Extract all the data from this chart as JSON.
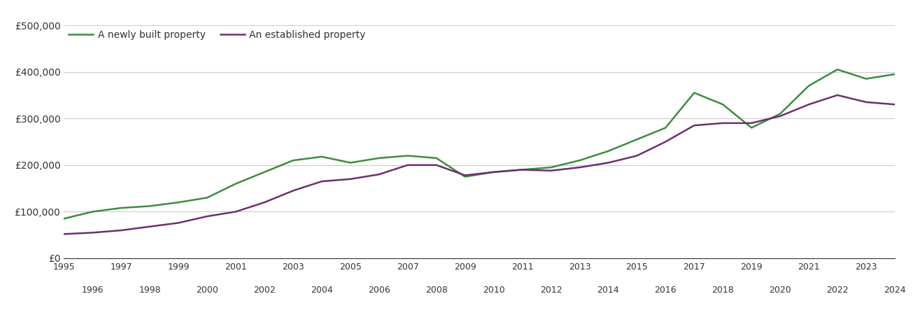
{
  "years": [
    1995,
    1996,
    1997,
    1998,
    1999,
    2000,
    2001,
    2002,
    2003,
    2004,
    2005,
    2006,
    2007,
    2008,
    2009,
    2010,
    2011,
    2012,
    2013,
    2014,
    2015,
    2016,
    2017,
    2018,
    2019,
    2020,
    2021,
    2022,
    2023,
    2024
  ],
  "new_property": [
    85000,
    100000,
    108000,
    112000,
    120000,
    130000,
    160000,
    185000,
    210000,
    218000,
    205000,
    215000,
    220000,
    215000,
    175000,
    185000,
    190000,
    195000,
    210000,
    230000,
    255000,
    280000,
    355000,
    330000,
    280000,
    310000,
    370000,
    405000,
    385000,
    395000
  ],
  "established_property": [
    52000,
    55000,
    60000,
    68000,
    76000,
    90000,
    100000,
    120000,
    145000,
    165000,
    170000,
    180000,
    200000,
    200000,
    178000,
    185000,
    190000,
    188000,
    195000,
    205000,
    220000,
    250000,
    285000,
    290000,
    290000,
    305000,
    330000,
    350000,
    335000,
    330000
  ],
  "new_color": "#3d8c40",
  "established_color": "#6b3070",
  "new_label": "A newly built property",
  "established_label": "An established property",
  "ylim": [
    0,
    500000
  ],
  "yticks": [
    0,
    100000,
    200000,
    300000,
    400000,
    500000
  ],
  "ytick_labels": [
    "£0",
    "£100,000",
    "£200,000",
    "£300,000",
    "£400,000",
    "£500,000"
  ],
  "background_color": "#ffffff",
  "grid_color": "#cccccc",
  "line_width": 1.8
}
